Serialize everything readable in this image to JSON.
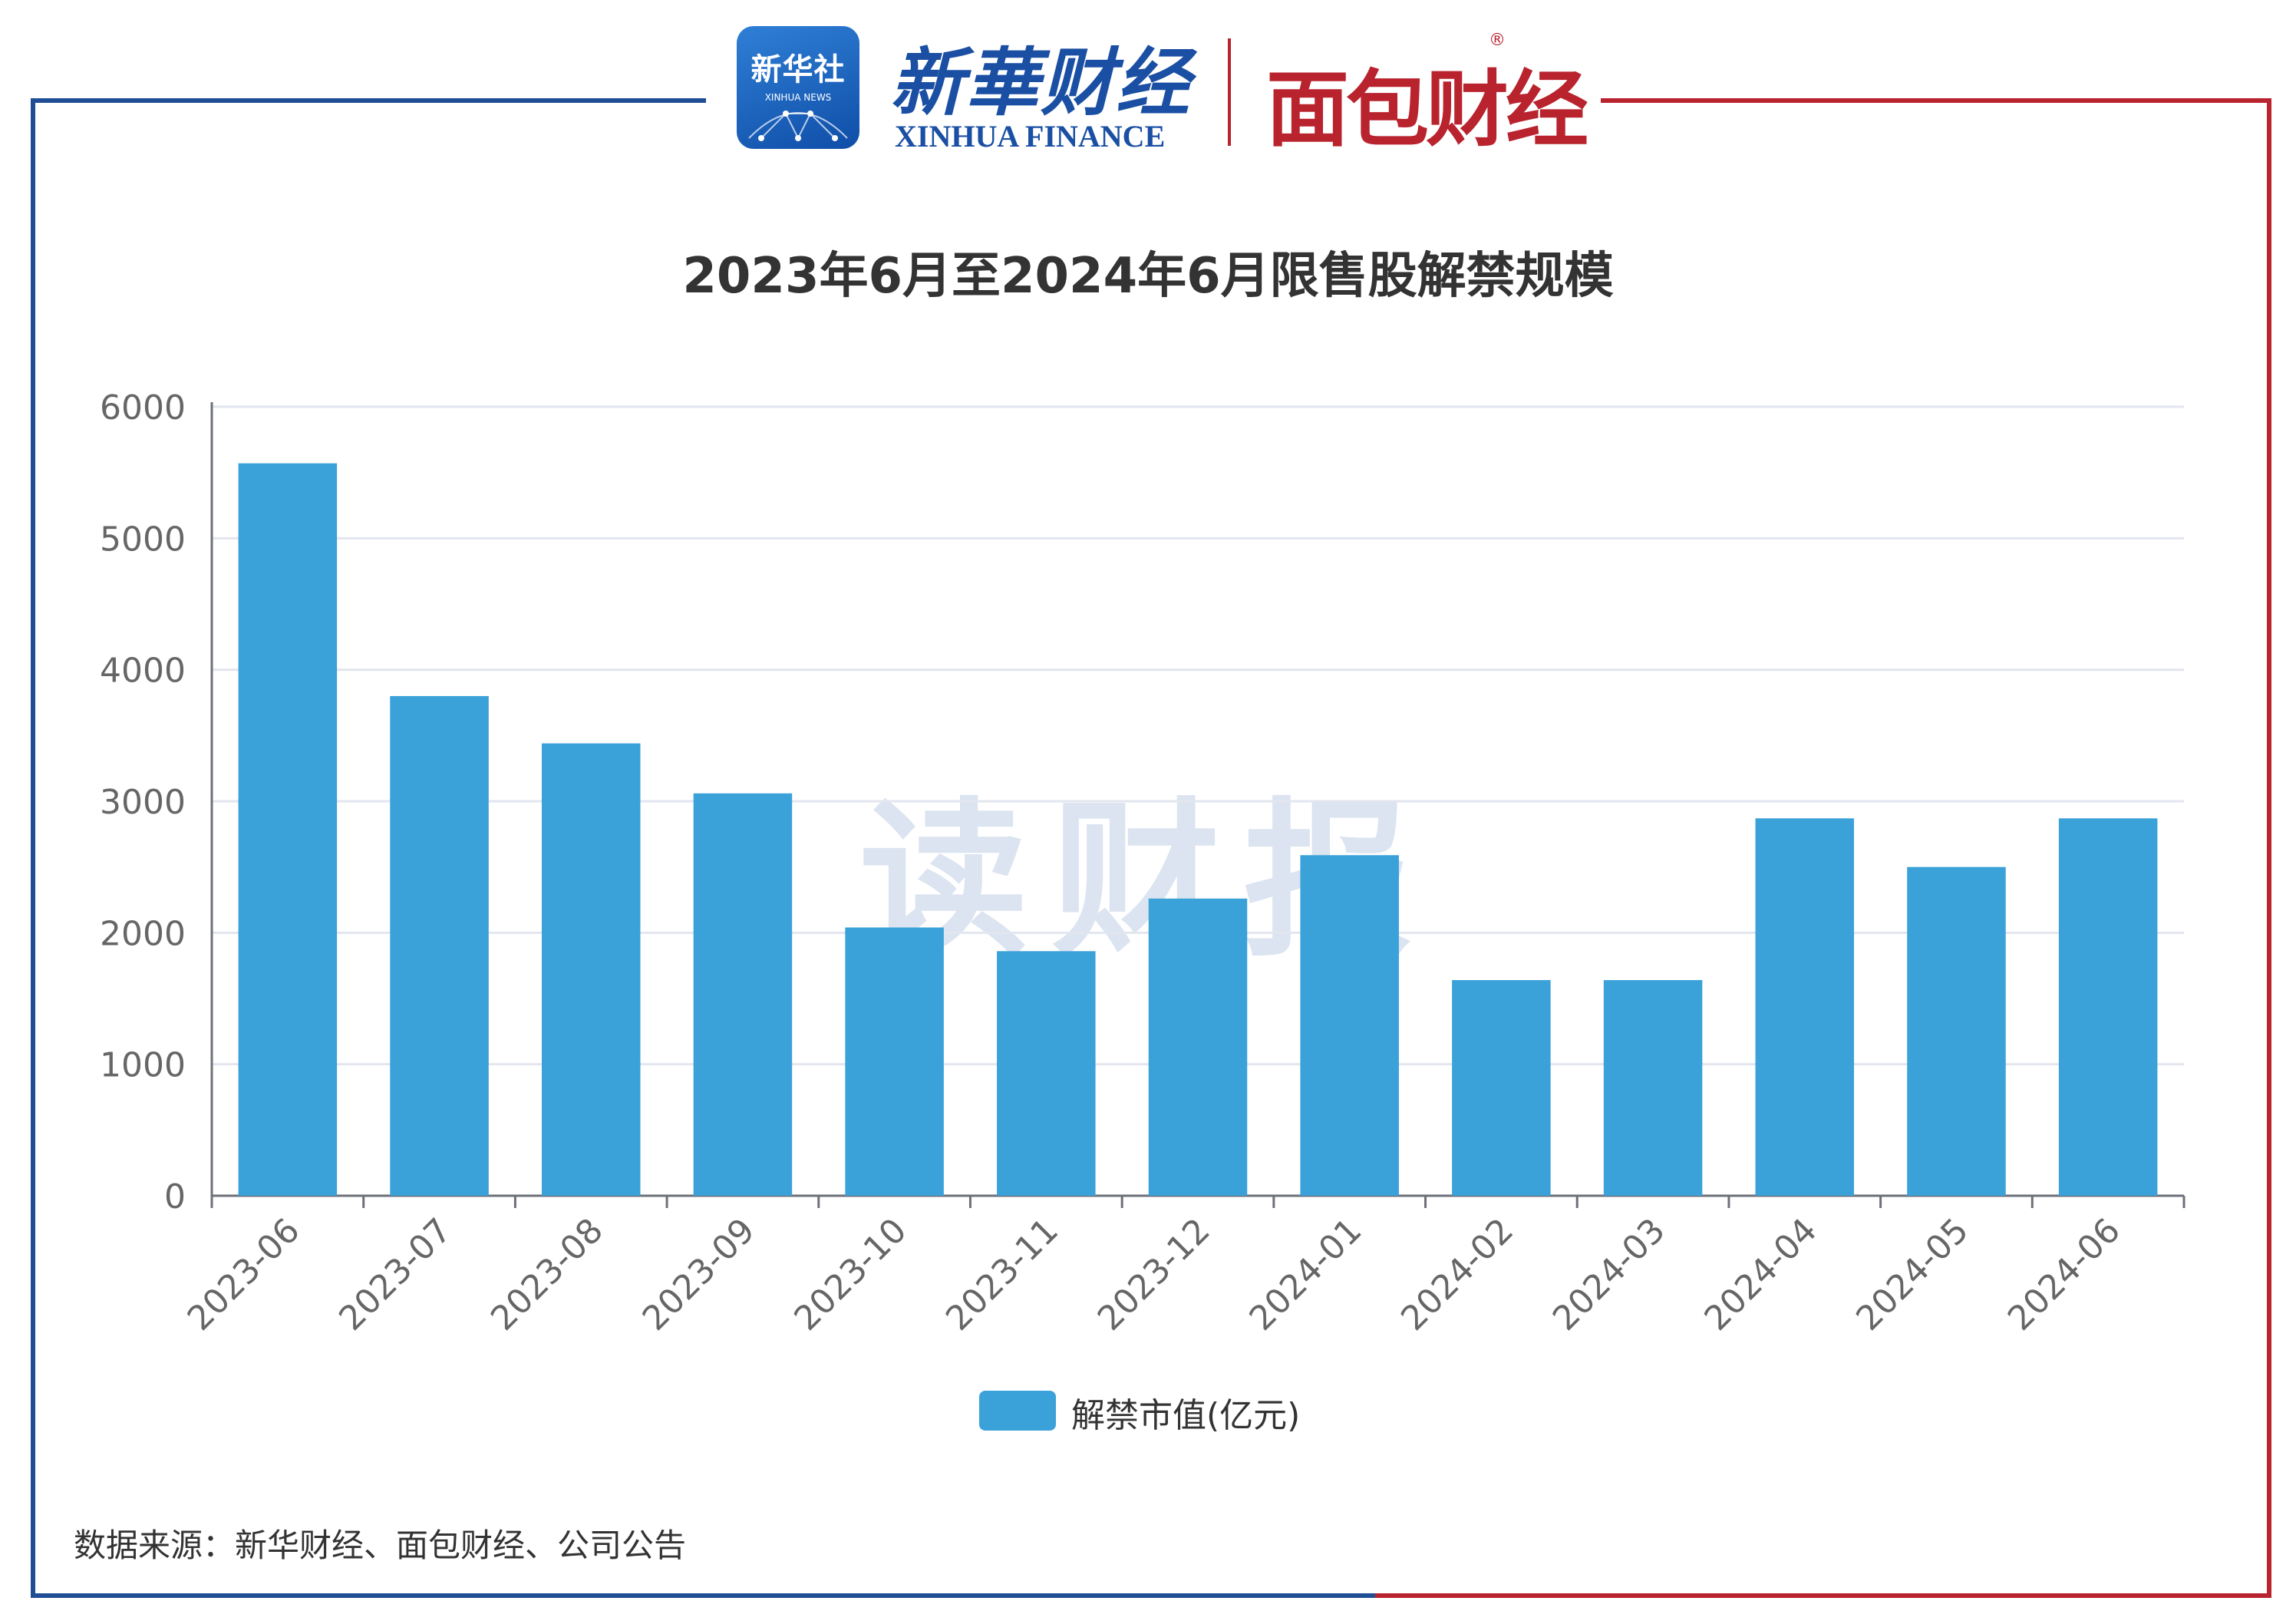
{
  "logos": {
    "xinhua_badge_cn": "新华社",
    "xinhua_badge_en": "XINHUA NEWS",
    "xinhua_finance_cn": "新華财经",
    "xinhua_finance_en": "XINHUA FINANCE",
    "mianbao": "面包财经",
    "reg_mark": "®"
  },
  "watermark": "读财报",
  "source_note": "数据来源：新华财经、面包财经、公司公告",
  "colors": {
    "bar": "#3aa1d9",
    "frame_left": "#1f4e96",
    "frame_right": "#b8232e",
    "grid": "#e3e6ef"
  },
  "chart_data": {
    "type": "bar",
    "title": "2023年6月至2024年6月限售股解禁规模",
    "categories": [
      "2023-06",
      "2023-07",
      "2023-08",
      "2023-09",
      "2023-10",
      "2023-11",
      "2023-12",
      "2024-01",
      "2024-02",
      "2024-03",
      "2024-04",
      "2024-05",
      "2024-06"
    ],
    "series": [
      {
        "name": "解禁市值(亿元)",
        "values": [
          5570,
          3800,
          3440,
          3060,
          2040,
          1860,
          2260,
          2590,
          1640,
          1640,
          2870,
          2500,
          2870
        ]
      }
    ],
    "ylim": [
      0,
      6000
    ],
    "yticks": [
      0,
      1000,
      2000,
      3000,
      4000,
      5000,
      6000
    ],
    "grid": true,
    "legend_position": "bottom-center",
    "xlabel": "",
    "ylabel": ""
  }
}
